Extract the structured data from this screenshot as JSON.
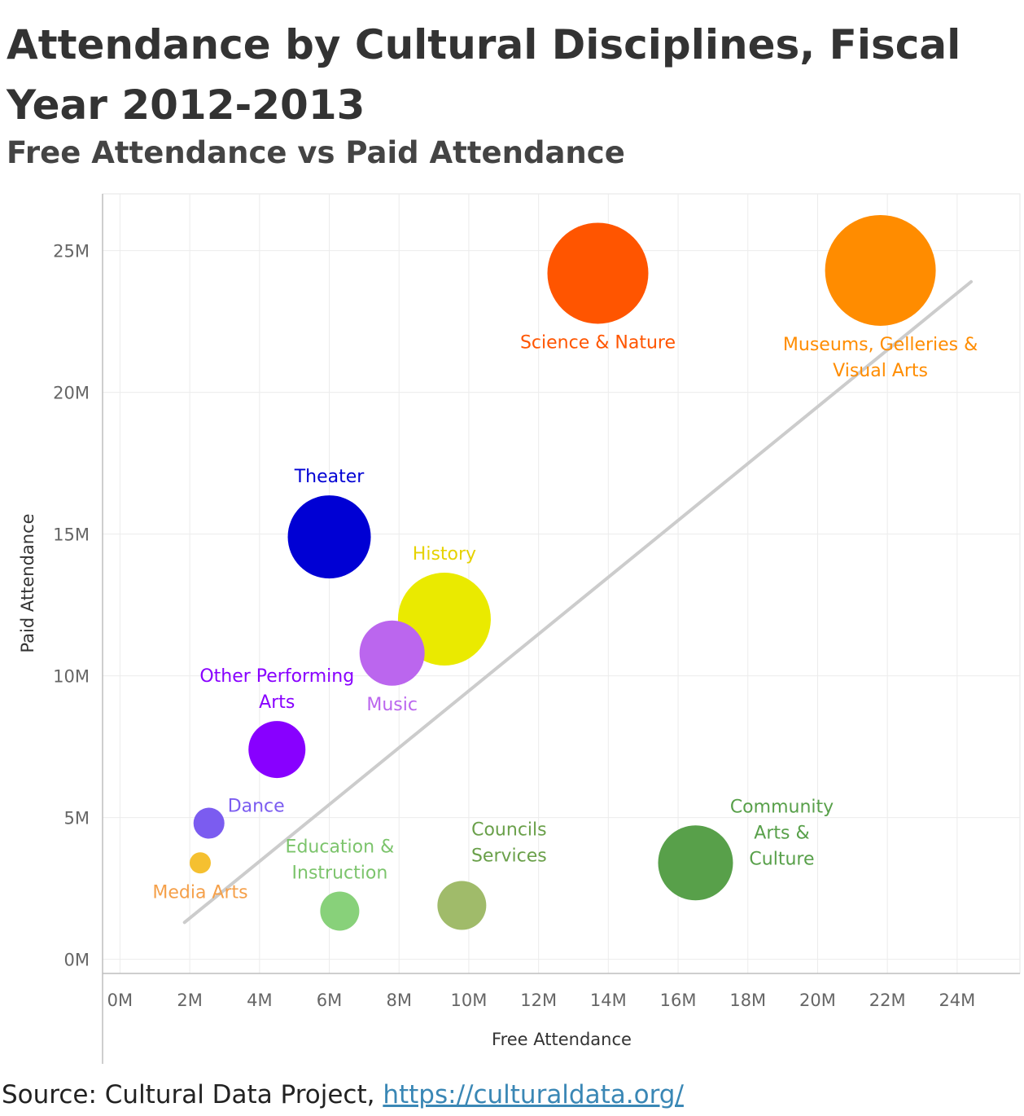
{
  "chart_data": {
    "type": "scatter",
    "title": "Attendance by Cultural Disciplines, Fiscal Year 2012-2013",
    "subtitle": "Free Attendance vs Paid Attendance",
    "xlabel": "Free Attendance",
    "ylabel": "Paid Attendance",
    "xlim": [
      -0.5,
      25.8
    ],
    "ylim": [
      -0.5,
      27
    ],
    "x_ticks": [
      "0M",
      "2M",
      "4M",
      "6M",
      "8M",
      "10M",
      "12M",
      "14M",
      "16M",
      "18M",
      "20M",
      "22M",
      "24M"
    ],
    "x_tick_values": [
      0,
      2,
      4,
      6,
      8,
      10,
      12,
      14,
      16,
      18,
      20,
      22,
      24
    ],
    "y_ticks": [
      "0M",
      "5M",
      "10M",
      "15M",
      "20M",
      "25M"
    ],
    "y_tick_values": [
      0,
      5,
      10,
      15,
      20,
      25
    ],
    "grid": true,
    "trend_line": {
      "from": [
        1.85,
        1.3
      ],
      "to": [
        24.4,
        23.9
      ],
      "color": "#cccccc"
    },
    "series": [
      {
        "name": "Science & Nature",
        "label_lines": [
          "Science & Nature"
        ],
        "x": 13.7,
        "y": 24.2,
        "r": 62,
        "color": "#ff5500",
        "label_color": "#ff5500",
        "label_pos": "below"
      },
      {
        "name": "Museums, Gelleries & Visual Arts",
        "label_lines": [
          "Museums, Gelleries &",
          "Visual Arts"
        ],
        "x": 21.8,
        "y": 24.3,
        "r": 68,
        "color": "#ff8c00",
        "label_color": "#ff8c00",
        "label_pos": "below"
      },
      {
        "name": "Theater",
        "label_lines": [
          "Theater"
        ],
        "x": 6.0,
        "y": 14.9,
        "r": 51,
        "color": "#0000d4",
        "label_color": "#0000d4",
        "label_pos": "above"
      },
      {
        "name": "History",
        "label_lines": [
          "History"
        ],
        "x": 9.3,
        "y": 12.0,
        "r": 57,
        "color": "#eaea00",
        "label_color": "#e6d200",
        "label_pos": "above"
      },
      {
        "name": "Music",
        "label_lines": [
          "Music"
        ],
        "x": 7.8,
        "y": 10.8,
        "r": 40,
        "color": "#bb66ee",
        "label_color": "#bb66ee",
        "label_pos": "below"
      },
      {
        "name": "Other Performing Arts",
        "label_lines": [
          "Other Performing",
          "Arts"
        ],
        "x": 4.5,
        "y": 7.4,
        "r": 35,
        "color": "#8800ff",
        "label_color": "#8800ff",
        "label_pos": "above"
      },
      {
        "name": "Dance",
        "label_lines": [
          "Dance"
        ],
        "x": 2.55,
        "y": 4.8,
        "r": 19,
        "color": "#7b5cf0",
        "label_color": "#7b5cf0",
        "label_pos": "right"
      },
      {
        "name": "Media Arts",
        "label_lines": [
          "Media Arts"
        ],
        "x": 2.3,
        "y": 3.4,
        "r": 13,
        "color": "#f5c030",
        "label_color": "#f5a04a",
        "label_pos": "below"
      },
      {
        "name": "Education & Instruction",
        "label_lines": [
          "Education &",
          "Instruction"
        ],
        "x": 6.3,
        "y": 1.7,
        "r": 24,
        "color": "#88d17a",
        "label_color": "#7cc46c",
        "label_pos": "above"
      },
      {
        "name": "Councils Services",
        "label_lines": [
          "Councils",
          "Services"
        ],
        "x": 9.8,
        "y": 1.9,
        "r": 30,
        "color": "#a0bb6a",
        "label_color": "#6aa04a",
        "label_pos": "above-right"
      },
      {
        "name": "Community Arts & Culture",
        "label_lines": [
          "Community",
          "Arts &",
          "Culture"
        ],
        "x": 16.5,
        "y": 3.4,
        "r": 46,
        "color": "#58a04a",
        "label_color": "#58a04a",
        "label_pos": "right"
      }
    ]
  },
  "source": {
    "prefix": "Source: Cultural Data Project, ",
    "link_text": "https://culturaldata.org/"
  }
}
